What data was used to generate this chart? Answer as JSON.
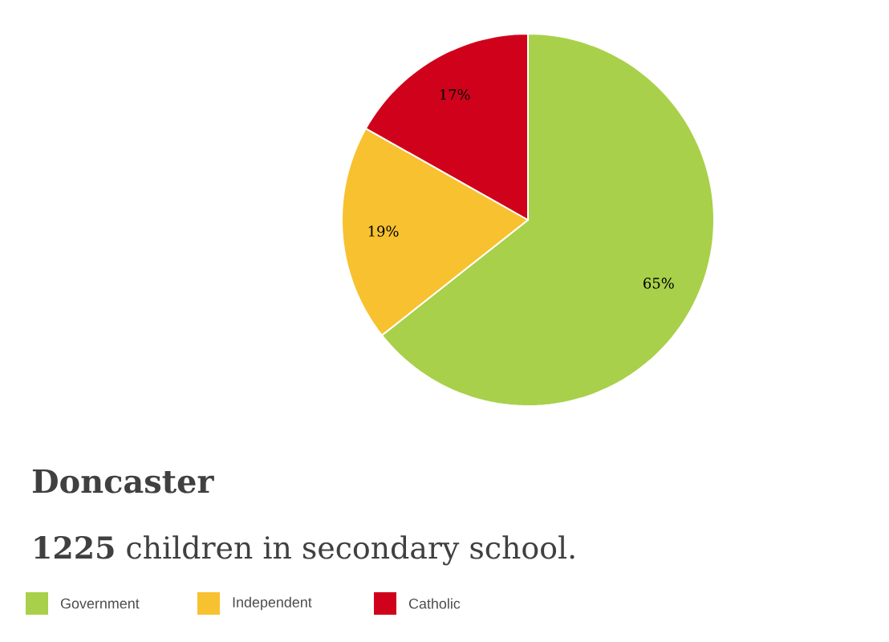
{
  "chart_data": {
    "type": "pie",
    "title": "Doncaster",
    "subtitle": "**1225** children in secondary school.",
    "categories": [
      "Government",
      "Independent",
      "Catholic"
    ],
    "values": [
      65,
      19,
      17
    ],
    "colors": [
      "#a8d04a",
      "#f8c12f",
      "#d0021b"
    ],
    "value_labels": [
      "65%",
      "19%",
      "17%"
    ],
    "legend": "bottom left"
  }
}
